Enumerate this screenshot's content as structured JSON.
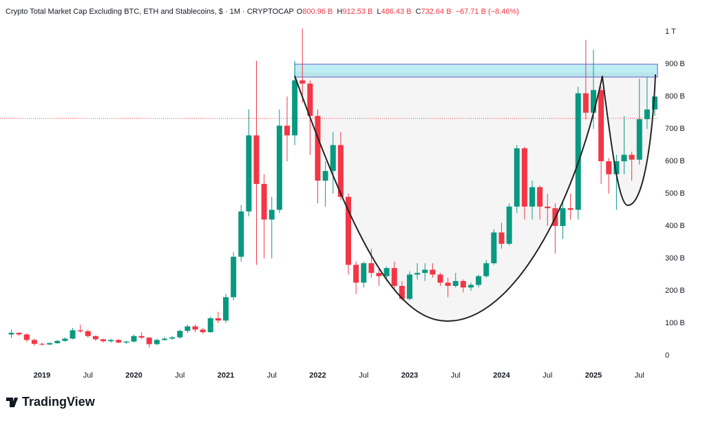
{
  "chart_data": {
    "type": "candlestick",
    "title": "Crypto Total Market Cap Excluding BTC, ETH and Stablecoins, $ · 1M · CRYPTOCAP",
    "ohlc_legend": [
      {
        "label": "O",
        "value": "800.96 B"
      },
      {
        "label": "H",
        "value": "912.53 B"
      },
      {
        "label": "L",
        "value": "486.43 B"
      },
      {
        "label": "C",
        "value": "732.64 B"
      }
    ],
    "change": "−67.71 B (−8.46%)",
    "brand": "TradingView",
    "categories": [
      null,
      null,
      null,
      null,
      "2019",
      null,
      null,
      null,
      null,
      null,
      "Jul",
      null,
      null,
      null,
      null,
      null,
      "2020",
      null,
      null,
      null,
      null,
      null,
      "Jul",
      null,
      null,
      null,
      null,
      null,
      "2021",
      null,
      null,
      null,
      null,
      null,
      "Jul",
      null,
      null,
      null,
      null,
      null,
      "2022",
      null,
      null,
      null,
      null,
      null,
      "Jul",
      null,
      null,
      null,
      null,
      null,
      "2023",
      null,
      null,
      null,
      null,
      null,
      "Jul",
      null,
      null,
      null,
      null,
      null,
      "2024",
      null,
      null,
      null,
      null,
      null,
      "Jul",
      null,
      null,
      null,
      null,
      null,
      "2025",
      null,
      null,
      null,
      null,
      null,
      "Jul",
      null,
      null
    ],
    "open": [
      65,
      70,
      65,
      48,
      36,
      34,
      38,
      45,
      52,
      78,
      75,
      60,
      50,
      44,
      48,
      40,
      43,
      60,
      55,
      35,
      48,
      52,
      56,
      76,
      90,
      80,
      72,
      115,
      108,
      180,
      305,
      445,
      680,
      530,
      420,
      450,
      710,
      680,
      850,
      840,
      740,
      540,
      570,
      650,
      490,
      280,
      225,
      285,
      255,
      245,
      270,
      215,
      175,
      250,
      255,
      265,
      250,
      225,
      215,
      230,
      210,
      218,
      245,
      285,
      380,
      345,
      460,
      640,
      460,
      520,
      460,
      455,
      400,
      455,
      450,
      810,
      750,
      820,
      600,
      560,
      600,
      620,
      605,
      730,
      760
    ],
    "high": [
      80,
      72,
      68,
      52,
      40,
      42,
      48,
      56,
      85,
      95,
      80,
      62,
      52,
      52,
      50,
      45,
      65,
      72,
      58,
      52,
      58,
      60,
      80,
      95,
      95,
      85,
      120,
      135,
      190,
      320,
      465,
      760,
      910,
      560,
      490,
      760,
      800,
      910,
      1010,
      850,
      760,
      600,
      690,
      690,
      500,
      290,
      290,
      330,
      270,
      275,
      290,
      230,
      260,
      285,
      285,
      285,
      255,
      240,
      255,
      235,
      225,
      250,
      295,
      390,
      410,
      470,
      650,
      645,
      540,
      525,
      500,
      470,
      480,
      500,
      830,
      975,
      945,
      830,
      610,
      620,
      740,
      630,
      855,
      860,
      815
    ],
    "low": [
      55,
      60,
      42,
      30,
      30,
      32,
      36,
      42,
      50,
      70,
      55,
      45,
      40,
      40,
      38,
      36,
      40,
      50,
      25,
      32,
      45,
      48,
      52,
      70,
      72,
      68,
      70,
      100,
      100,
      170,
      290,
      430,
      280,
      300,
      300,
      440,
      600,
      650,
      780,
      620,
      470,
      460,
      500,
      480,
      250,
      190,
      210,
      240,
      215,
      230,
      200,
      170,
      170,
      235,
      230,
      240,
      215,
      180,
      210,
      195,
      200,
      210,
      240,
      280,
      330,
      340,
      440,
      420,
      420,
      420,
      400,
      315,
      360,
      420,
      420,
      730,
      700,
      530,
      500,
      450,
      560,
      540,
      590,
      700,
      740
    ],
    "close": [
      70,
      65,
      48,
      36,
      34,
      38,
      45,
      52,
      78,
      75,
      60,
      50,
      44,
      48,
      40,
      43,
      60,
      55,
      35,
      48,
      52,
      56,
      76,
      90,
      80,
      72,
      115,
      108,
      180,
      305,
      445,
      680,
      530,
      420,
      450,
      710,
      680,
      850,
      840,
      740,
      540,
      570,
      650,
      490,
      280,
      225,
      285,
      255,
      245,
      270,
      215,
      175,
      250,
      255,
      265,
      250,
      225,
      215,
      230,
      210,
      218,
      245,
      285,
      380,
      345,
      460,
      640,
      460,
      520,
      460,
      455,
      400,
      455,
      450,
      810,
      750,
      820,
      600,
      560,
      600,
      620,
      605,
      730,
      760,
      800
    ],
    "up_color": "#089981",
    "down_color": "#f23645",
    "zone": [
      860,
      900
    ],
    "price_line": 732.64,
    "ylim": [
      -30,
      1045
    ],
    "yticks": [
      0,
      {
        "value": 100,
        "label": "100 B"
      },
      {
        "value": 200,
        "label": "200 B"
      },
      {
        "value": 300,
        "label": "300 B"
      },
      {
        "value": 400,
        "label": "400 B"
      },
      {
        "value": 500,
        "label": "500 B"
      },
      {
        "value": 600,
        "label": "600 B"
      },
      {
        "value": 700,
        "label": "700 B"
      },
      {
        "value": 800,
        "label": "800 B"
      },
      {
        "value": 900,
        "label": "900 B"
      },
      {
        "value": 1000,
        "label": "1 T"
      }
    ],
    "grid": false
  }
}
